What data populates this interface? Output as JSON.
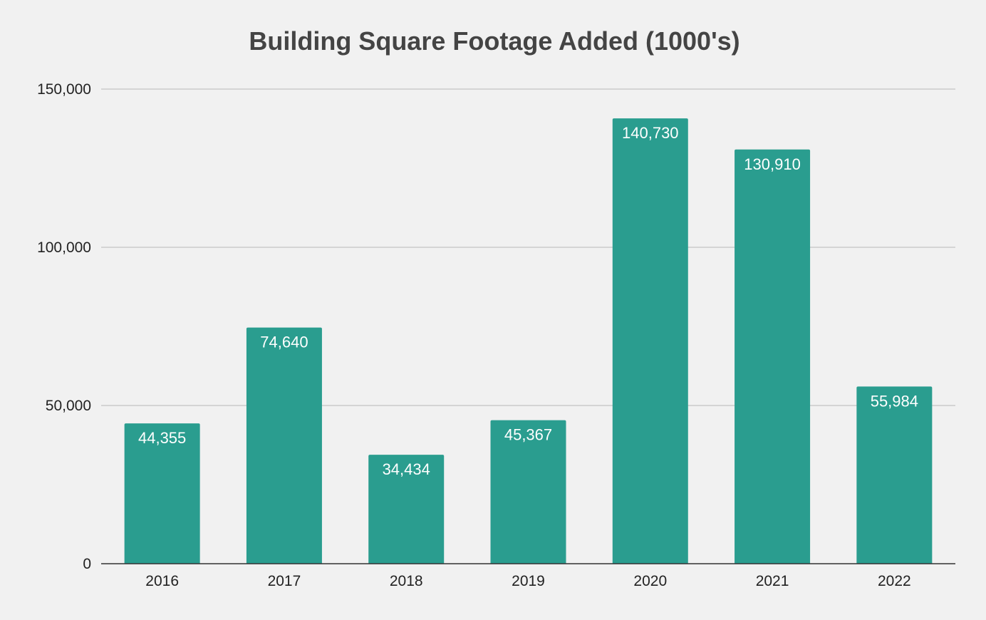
{
  "chart_data": {
    "type": "bar",
    "title": "Building Square Footage Added (1000's)",
    "xlabel": "",
    "ylabel": "",
    "categories": [
      "2016",
      "2017",
      "2018",
      "2019",
      "2020",
      "2021",
      "2022"
    ],
    "values": [
      44355,
      74640,
      34434,
      45367,
      140730,
      130910,
      55984
    ],
    "data_labels": [
      "44,355",
      "74,640",
      "34,434",
      "45,367",
      "140,730",
      "130,910",
      "55,984"
    ],
    "ylim": [
      0,
      150000
    ],
    "y_ticks": [
      {
        "value": 0,
        "label": "0"
      },
      {
        "value": 50000,
        "label": "50,000"
      },
      {
        "value": 100000,
        "label": "100,000"
      },
      {
        "value": 150000,
        "label": "150,000"
      }
    ],
    "grid": true,
    "legend": "none",
    "colors": {
      "bar": "#2a9d8f",
      "background": "#f1f1f1",
      "title": "#444444"
    }
  }
}
